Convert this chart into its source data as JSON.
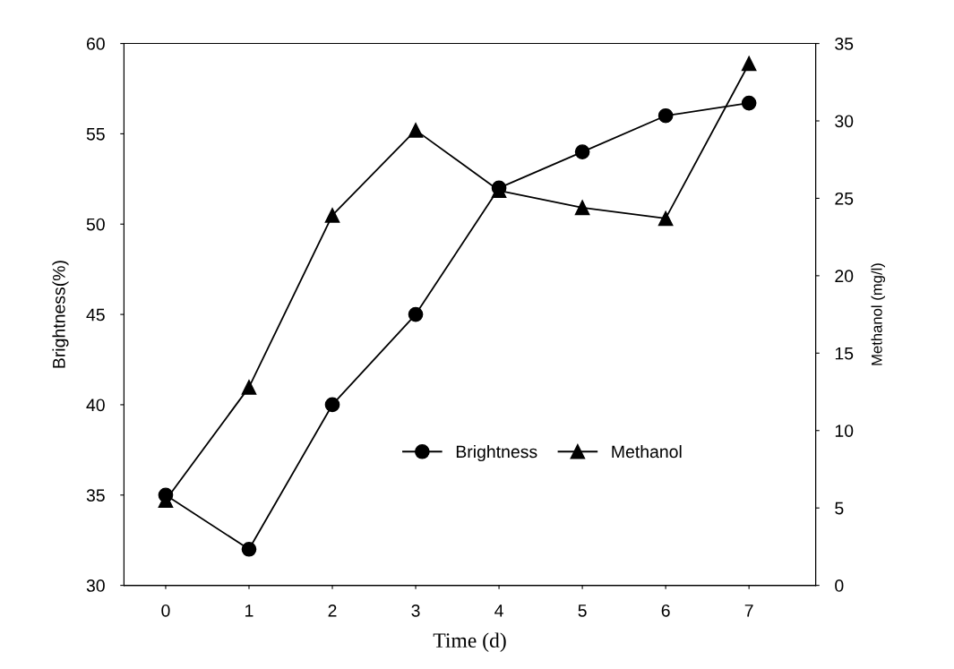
{
  "chart_data": {
    "type": "line",
    "xlabel": "Time (d)",
    "ylabel": "Brightness(%)",
    "y2label": "Methanol (mg/l)",
    "x": [
      0,
      1,
      2,
      3,
      4,
      5,
      6,
      7
    ],
    "series": [
      {
        "name": "Brightness",
        "color": "#000000",
        "marker": "circle",
        "values": [
          35,
          32,
          40,
          45,
          52,
          54,
          56,
          56.7
        ]
      },
      {
        "name": "Methanol",
        "color": "#000000",
        "marker": "triangle",
        "axis": "y2",
        "values": [
          5.5,
          12.8,
          23.9,
          29.4,
          25.5,
          24.4,
          23.7,
          33.7
        ]
      }
    ],
    "xlim": [
      -0.5,
      7.8
    ],
    "xticks": [
      0,
      1,
      2,
      3,
      4,
      5,
      6,
      7
    ],
    "ylim": [
      30,
      60
    ],
    "yticks": [
      30,
      35,
      40,
      45,
      50,
      55,
      60
    ],
    "y2lim": [
      0,
      35
    ],
    "y2ticks": [
      0,
      5,
      10,
      15,
      20,
      25,
      30,
      35
    ],
    "grid": false,
    "legend": "bottom right",
    "line_style": "solid"
  }
}
